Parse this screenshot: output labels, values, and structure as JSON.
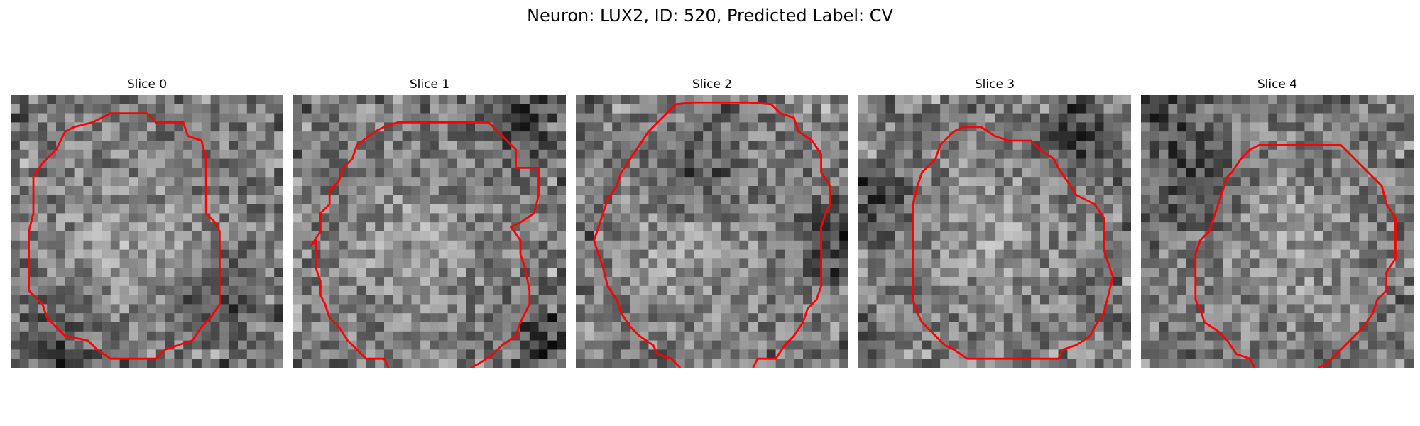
{
  "figure": {
    "title": "Neuron: LUX2, ID: 520, Predicted Label: CV"
  },
  "panels": [
    {
      "title": "Slice 0",
      "seed": 11,
      "bright_center": [
        0.45,
        0.55
      ],
      "dark_regions": [
        [
          0.15,
          0.92
        ],
        [
          0.75,
          0.75
        ]
      ]
    },
    {
      "title": "Slice 1",
      "seed": 23,
      "bright_center": [
        0.45,
        0.55
      ],
      "dark_regions": [
        [
          0.85,
          0.1
        ],
        [
          0.9,
          0.9
        ]
      ]
    },
    {
      "title": "Slice 2",
      "seed": 37,
      "bright_center": [
        0.4,
        0.55
      ],
      "dark_regions": [
        [
          0.45,
          0.3
        ],
        [
          0.95,
          0.55
        ]
      ]
    },
    {
      "title": "Slice 3",
      "seed": 41,
      "bright_center": [
        0.5,
        0.5
      ],
      "dark_regions": [
        [
          0.05,
          0.4
        ],
        [
          0.8,
          0.15
        ]
      ]
    },
    {
      "title": "Slice 4",
      "seed": 53,
      "bright_center": [
        0.55,
        0.55
      ],
      "dark_regions": [
        [
          0.2,
          0.35
        ],
        [
          0.1,
          0.1
        ]
      ]
    }
  ],
  "style": {
    "contour_color": "#ff0000",
    "colormap": "gray"
  }
}
